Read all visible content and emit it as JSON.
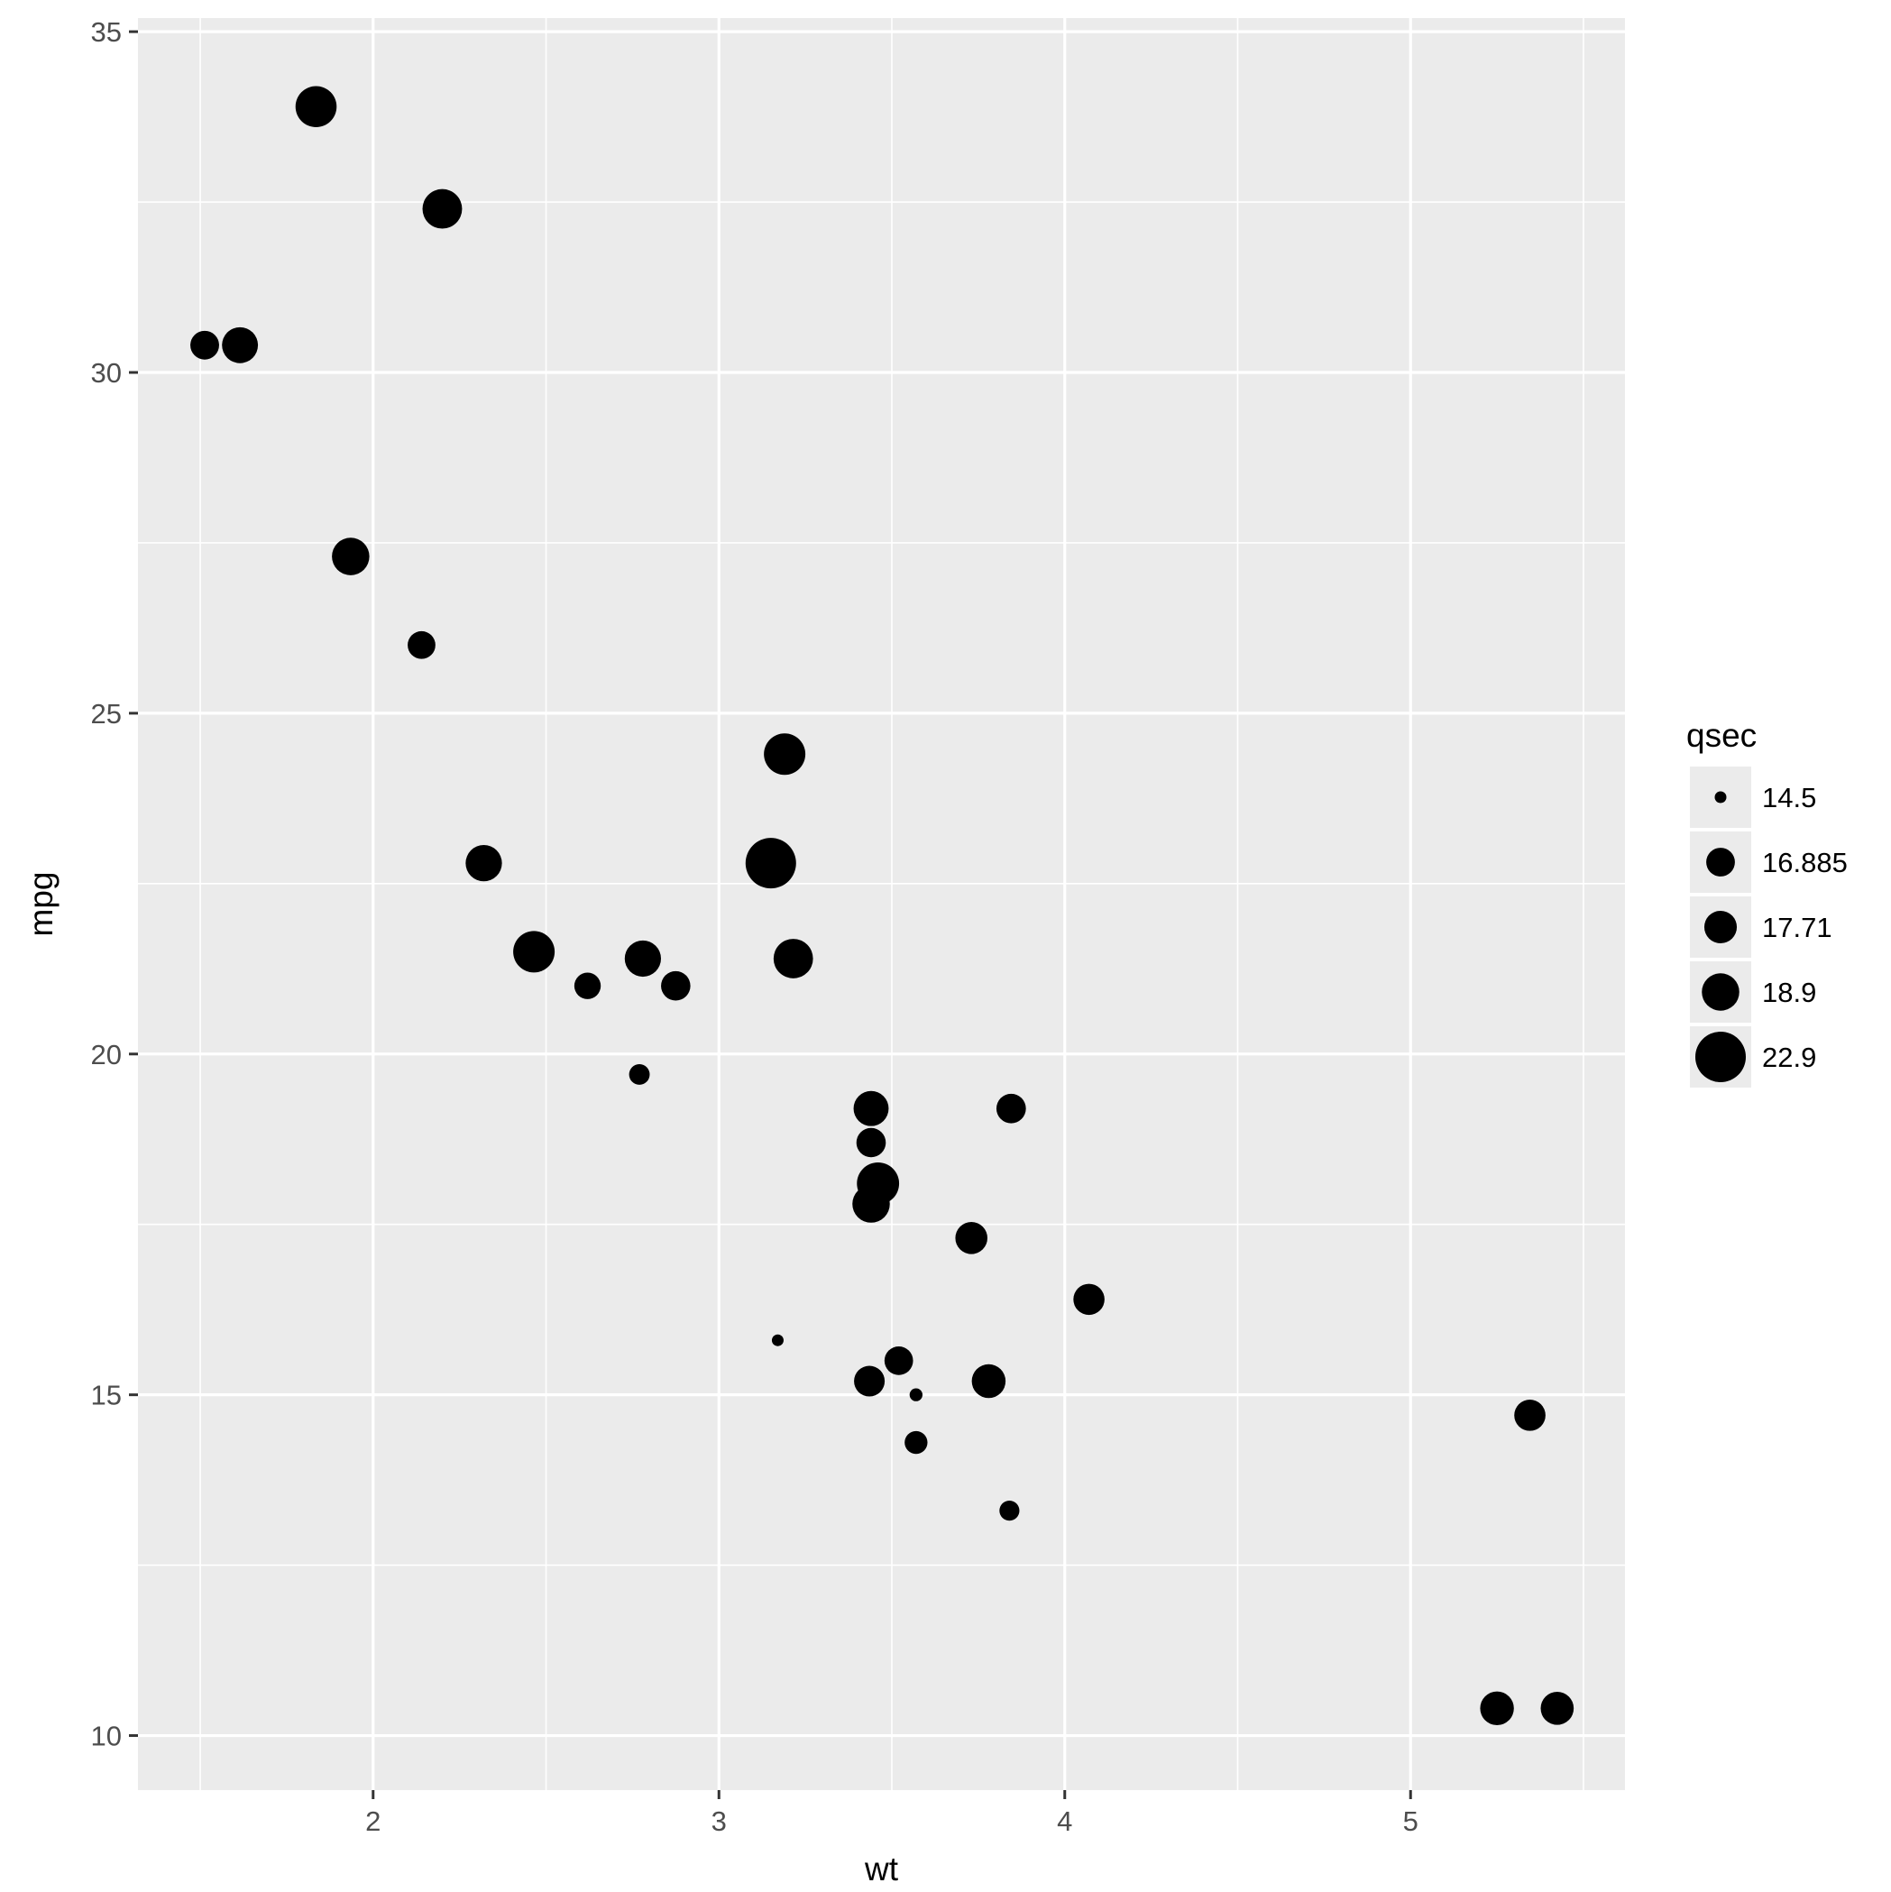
{
  "chart_data": {
    "type": "scatter",
    "xlabel": "wt",
    "ylabel": "mpg",
    "xlim": [
      1.32,
      5.62
    ],
    "ylim": [
      9.2,
      35.2
    ],
    "x_ticks": [
      2,
      3,
      4,
      5
    ],
    "y_ticks": [
      10,
      15,
      20,
      25,
      30,
      35
    ],
    "grid": true,
    "legend_placement": "right",
    "size_legend": {
      "title": "qsec",
      "entries": [
        {
          "label": "14.5",
          "value": 14.5
        },
        {
          "label": "16.885",
          "value": 16.885
        },
        {
          "label": "17.71",
          "value": 17.71
        },
        {
          "label": "18.9",
          "value": 18.9
        },
        {
          "label": "22.9",
          "value": 22.9
        }
      ]
    },
    "points": [
      {
        "x": 2.62,
        "y": 21.0,
        "size": 16.46
      },
      {
        "x": 2.875,
        "y": 21.0,
        "size": 17.02
      },
      {
        "x": 2.32,
        "y": 22.8,
        "size": 18.61
      },
      {
        "x": 3.215,
        "y": 21.4,
        "size": 19.44
      },
      {
        "x": 3.44,
        "y": 18.7,
        "size": 17.02
      },
      {
        "x": 3.46,
        "y": 18.1,
        "size": 20.22
      },
      {
        "x": 3.57,
        "y": 14.3,
        "size": 15.84
      },
      {
        "x": 3.19,
        "y": 24.4,
        "size": 20.0
      },
      {
        "x": 3.15,
        "y": 22.8,
        "size": 22.9
      },
      {
        "x": 3.44,
        "y": 19.2,
        "size": 18.3
      },
      {
        "x": 3.44,
        "y": 17.8,
        "size": 18.9
      },
      {
        "x": 4.07,
        "y": 16.4,
        "size": 17.4
      },
      {
        "x": 3.73,
        "y": 17.3,
        "size": 17.6
      },
      {
        "x": 3.78,
        "y": 15.2,
        "size": 18.0
      },
      {
        "x": 5.25,
        "y": 10.4,
        "size": 17.98
      },
      {
        "x": 5.424,
        "y": 10.4,
        "size": 17.82
      },
      {
        "x": 5.345,
        "y": 14.7,
        "size": 17.42
      },
      {
        "x": 2.2,
        "y": 32.4,
        "size": 19.47
      },
      {
        "x": 1.615,
        "y": 30.4,
        "size": 18.52
      },
      {
        "x": 1.835,
        "y": 33.9,
        "size": 19.9
      },
      {
        "x": 2.465,
        "y": 21.5,
        "size": 20.01
      },
      {
        "x": 3.52,
        "y": 15.5,
        "size": 16.87
      },
      {
        "x": 3.435,
        "y": 15.2,
        "size": 17.3
      },
      {
        "x": 3.84,
        "y": 13.3,
        "size": 15.41
      },
      {
        "x": 3.845,
        "y": 19.2,
        "size": 17.05
      },
      {
        "x": 1.935,
        "y": 27.3,
        "size": 18.9
      },
      {
        "x": 2.14,
        "y": 26.0,
        "size": 16.7
      },
      {
        "x": 1.513,
        "y": 30.4,
        "size": 16.9
      },
      {
        "x": 3.17,
        "y": 15.8,
        "size": 14.5
      },
      {
        "x": 2.77,
        "y": 19.7,
        "size": 15.5
      },
      {
        "x": 3.57,
        "y": 15.0,
        "size": 14.6
      },
      {
        "x": 2.78,
        "y": 21.4,
        "size": 18.6
      }
    ]
  }
}
